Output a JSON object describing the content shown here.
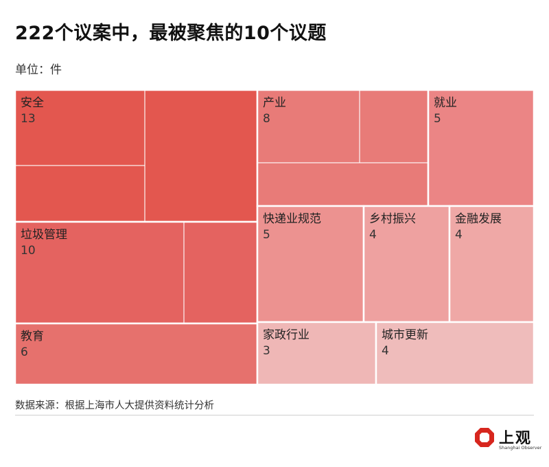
{
  "header": {
    "title": "222个议案中，最被聚焦的10个议题",
    "unit": "单位：件"
  },
  "footer": {
    "source": "数据来源：根据上海市人大提供资料统计分析",
    "logo_text": "上观",
    "logo_subtext": "Shanghai Observer"
  },
  "chart_data": {
    "type": "treemap",
    "title": "222个议案中，最被聚焦的10个议题",
    "unit": "件",
    "items": [
      {
        "name": "安全",
        "value": 13,
        "color": "#e3574f"
      },
      {
        "name": "垃圾管理",
        "value": 10,
        "color": "#e46360"
      },
      {
        "name": "教育",
        "value": 6,
        "color": "#e6716d"
      },
      {
        "name": "产业",
        "value": 8,
        "color": "#e87b78"
      },
      {
        "name": "就业",
        "value": 5,
        "color": "#eb8585"
      },
      {
        "name": "快递业规范",
        "value": 5,
        "color": "#ec9290"
      },
      {
        "name": "乡村振兴",
        "value": 4,
        "color": "#eea1a0"
      },
      {
        "name": "金融发展",
        "value": 4,
        "color": "#efa8a6"
      },
      {
        "name": "家政行业",
        "value": 3,
        "color": "#efb7b6"
      },
      {
        "name": "城市更新",
        "value": 4,
        "color": "#efbcbb"
      }
    ]
  }
}
